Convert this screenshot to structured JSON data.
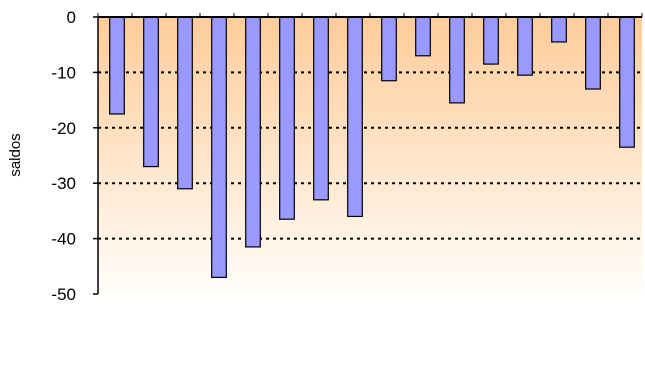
{
  "chart_data": {
    "type": "bar",
    "ylabel": "saldos",
    "ylim": [
      -50,
      0
    ],
    "yticks": [
      0,
      -10,
      -20,
      -30,
      -40,
      -50
    ],
    "ytick_labels": [
      "0",
      "-10",
      "-20",
      "-30",
      "-40",
      "-50"
    ],
    "grid": true,
    "categories": [
      "",
      "",
      "",
      "",
      "",
      "",
      "",
      "",
      "",
      "",
      "",
      "",
      "",
      "",
      "",
      ""
    ],
    "values": [
      -17.5,
      -27,
      -31,
      -47,
      -41.5,
      -36.5,
      -33,
      -36,
      -11.5,
      -7,
      -15.5,
      -8.5,
      -10.5,
      -4.5,
      -13,
      -23.5
    ],
    "colors": {
      "bar_fill": "#9999ff",
      "bar_stroke": "#000000",
      "bg_top": "#ffcc99",
      "bg_bottom": "#fffdf9",
      "grid": "#000000"
    }
  }
}
